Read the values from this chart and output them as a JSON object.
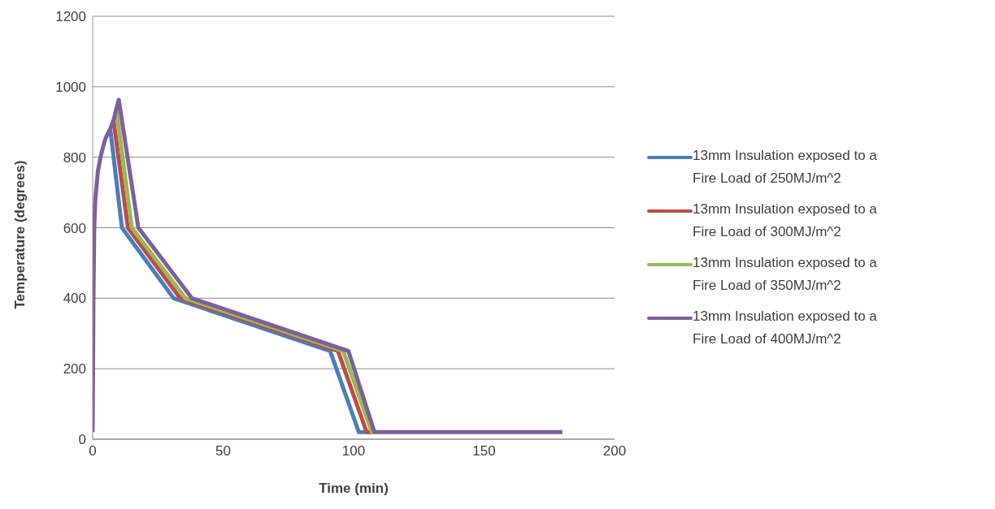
{
  "chart_data": {
    "type": "line",
    "xlabel": "Time (min)",
    "ylabel": "Temperature (degrees)",
    "xlim": [
      0,
      200
    ],
    "xticks": [
      0,
      50,
      100,
      150,
      200
    ],
    "ylim": [
      0,
      1200
    ],
    "yticks": [
      0,
      200,
      400,
      600,
      800,
      1000,
      1200
    ],
    "grid": "y",
    "legend": "right",
    "marker": "none",
    "line_style": "solid",
    "series": [
      {
        "name": "13mm Insulation exposed to a Fire Load of 250MJ/m^2",
        "color": "#4a7ebb",
        "x": [
          6.8,
          11.2,
          31,
          91,
          102,
          108
        ],
        "values": [
          877,
          600,
          400,
          250,
          20,
          20
        ]
      },
      {
        "name": "13mm Insulation exposed to a Fire Load of 300MJ/m^2",
        "color": "#be4b48",
        "x": [
          8,
          13.5,
          33.5,
          94,
          105,
          108
        ],
        "values": [
          905,
          600,
          400,
          250,
          20,
          20
        ]
      },
      {
        "name": "13mm Insulation exposed to a Fire Load of 350MJ/m^2",
        "color": "#98b954",
        "x": [
          9,
          15,
          35.5,
          96,
          107,
          108
        ],
        "values": [
          940,
          600,
          400,
          250,
          20,
          20
        ]
      },
      {
        "name": "13mm Insulation exposed to a Fire Load of 400MJ/m^2",
        "color": "#7d5fa0",
        "x": [
          0,
          0.3,
          0.6,
          1,
          2,
          3,
          4,
          5,
          6,
          7,
          8,
          9,
          10,
          17.5,
          38,
          98,
          108,
          180
        ],
        "values": [
          20,
          400,
          600,
          680,
          760,
          800,
          830,
          855,
          870,
          885,
          905,
          935,
          963,
          600,
          400,
          250,
          20,
          20
        ]
      }
    ]
  }
}
